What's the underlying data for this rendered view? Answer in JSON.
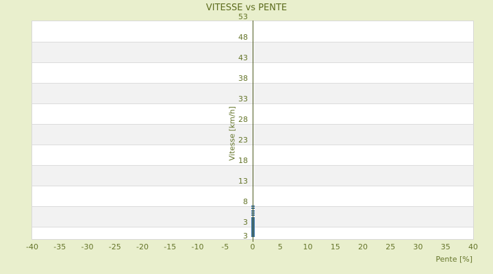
{
  "chart": {
    "title": "VITESSE vs PENTE",
    "colors": {
      "background": "#e9efcd",
      "text": "#5f6f22",
      "band_white": "#ffffff",
      "band_gray": "#f2f2f2",
      "gridline": "#dcdcdc",
      "plot_border": "#d8d8d8",
      "zero_axis_line": "#4b581b",
      "marker": "#3c73a0"
    }
  },
  "chart_data": {
    "type": "scatter",
    "title": "VITESSE vs PENTE",
    "xlabel": "Pente [%]",
    "ylabel": "Vitesse [km/h]",
    "xlim": [
      -40,
      40
    ],
    "ylim": [
      0,
      53
    ],
    "x_ticks": [
      "-40",
      "-35",
      "-30",
      "-25",
      "-20",
      "-15",
      "-10",
      "-5",
      "0",
      "5",
      "10",
      "15",
      "20",
      "25",
      "30",
      "35",
      "40"
    ],
    "y_ticks": [
      "53",
      "48",
      "43",
      "38",
      "33",
      "28",
      "23",
      "18",
      "13",
      "8",
      "3"
    ],
    "y_axis_bottom_label": "3",
    "grid": "horizontal-bands-alternating",
    "legend": "none",
    "zero_axis_line_x": 0,
    "series": [
      {
        "name": "vitesse-vs-pente-points",
        "marker": "horizontal-dash",
        "points": [
          [
            0,
            8.0
          ],
          [
            0,
            7.45
          ],
          [
            0,
            6.9
          ],
          [
            0,
            6.35
          ],
          [
            0,
            5.8
          ],
          [
            0,
            5.25
          ],
          [
            0,
            4.95
          ],
          [
            0,
            4.8
          ],
          [
            0,
            4.65
          ],
          [
            0,
            4.5
          ],
          [
            0,
            4.35
          ],
          [
            0,
            4.2
          ],
          [
            0,
            4.05
          ],
          [
            0,
            3.9
          ],
          [
            0,
            3.75
          ],
          [
            0,
            3.6
          ],
          [
            0,
            3.45
          ],
          [
            0,
            3.3
          ],
          [
            0,
            3.15
          ],
          [
            0,
            3.0
          ],
          [
            0,
            2.85
          ],
          [
            0,
            2.7
          ],
          [
            0,
            2.55
          ],
          [
            0,
            2.4
          ],
          [
            0,
            2.25
          ],
          [
            0,
            2.1
          ],
          [
            0,
            1.95
          ],
          [
            0,
            1.8
          ],
          [
            0,
            1.65
          ],
          [
            0,
            1.5
          ],
          [
            0,
            1.35
          ],
          [
            0,
            1.2
          ],
          [
            0,
            1.05
          ],
          [
            0,
            0.9
          ],
          [
            0,
            0.75
          ],
          [
            0,
            0.6
          ]
        ]
      }
    ]
  }
}
